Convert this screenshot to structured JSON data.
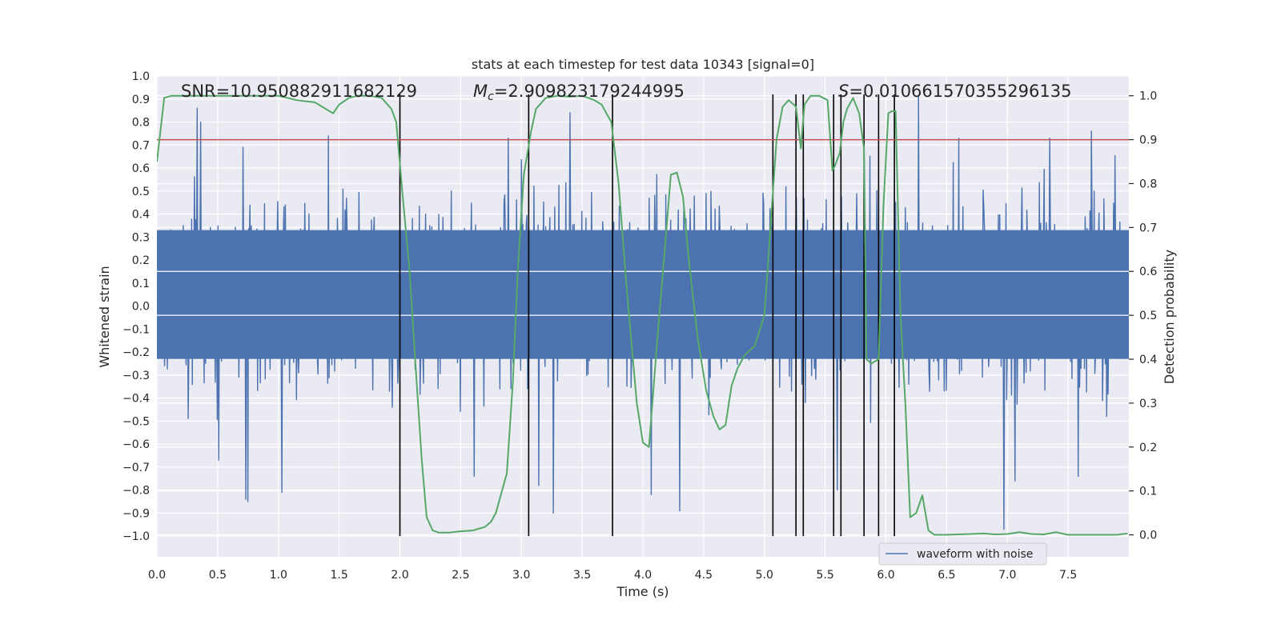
{
  "chart_data": {
    "type": "line",
    "title": "stats at each timestep for test data 10343 [signal=0]",
    "xlabel": "Time (s)",
    "ylabel_left": "Whitened strain",
    "ylabel_right": "Detection probability",
    "xlim": [
      0.0,
      8.0
    ],
    "ylim_left": [
      -1.09,
      1.0
    ],
    "ylim_right": [
      -0.05,
      1.045
    ],
    "x_ticks": [
      0.0,
      0.5,
      1.0,
      1.5,
      2.0,
      2.5,
      3.0,
      3.5,
      4.0,
      4.5,
      5.0,
      5.5,
      6.0,
      6.5,
      7.0,
      7.5
    ],
    "x_tick_labels": [
      "0.0",
      "0.5",
      "1.0",
      "1.5",
      "2.0",
      "2.5",
      "3.0",
      "3.5",
      "4.0",
      "4.5",
      "5.0",
      "5.5",
      "6.0",
      "6.5",
      "7.0",
      "7.5"
    ],
    "y_left_ticks": [
      1.0,
      0.9,
      0.8,
      0.7,
      0.6,
      0.5,
      0.4,
      0.3,
      0.2,
      0.1,
      0.0,
      -0.1,
      -0.2,
      -0.3,
      -0.4,
      -0.5,
      -0.6,
      -0.7,
      -0.8,
      -0.9,
      -1.0
    ],
    "y_left_tick_labels": [
      "1.0",
      "0.9",
      "0.8",
      "0.7",
      "0.6",
      "0.5",
      "0.4",
      "0.3",
      "0.2",
      "0.1",
      "0.0",
      "−0.1",
      "−0.2",
      "−0.3",
      "−0.4",
      "−0.5",
      "−0.6",
      "−0.7",
      "−0.8",
      "−0.9",
      "−1.0"
    ],
    "y_right_ticks": [
      1.0,
      0.9,
      0.8,
      0.7,
      0.6,
      0.5,
      0.4,
      0.3,
      0.2,
      0.1,
      0.0
    ],
    "y_right_tick_labels": [
      "1.0",
      "0.9",
      "0.8",
      "0.7",
      "0.6",
      "0.5",
      "0.4",
      "0.3",
      "0.2",
      "0.1",
      "0.0"
    ],
    "annotations": {
      "snr": "SNR=10.950882911682129",
      "mc_symbol": "M",
      "mc_sub": "c",
      "mc_value": "=2.909823179244995",
      "s_symbol": "S",
      "s_value": "=0.010661570355296135"
    },
    "threshold": 0.9,
    "vertical_lines_x": [
      2.0,
      3.06,
      3.75,
      5.07,
      5.26,
      5.32,
      5.57,
      5.63,
      5.82,
      5.94,
      6.07
    ],
    "vertical_lines_range_left": [
      -1.0,
      0.92
    ],
    "waveform": {
      "name": "waveform with noise",
      "n_samples": 1400,
      "dense_band": [
        -0.23,
        0.33
      ],
      "peaks_pos": [
        [
          0.33,
          0.86
        ],
        [
          0.36,
          0.8
        ],
        [
          0.71,
          0.69
        ],
        [
          1.41,
          0.74
        ],
        [
          2.89,
          0.73
        ],
        [
          3.4,
          0.84
        ],
        [
          6.27,
          0.91
        ],
        [
          6.6,
          0.73
        ],
        [
          7.35,
          0.73
        ],
        [
          7.69,
          0.76
        ]
      ],
      "peaks_neg": [
        [
          0.73,
          -0.84
        ],
        [
          0.75,
          -0.85
        ],
        [
          0.51,
          -0.67
        ],
        [
          1.03,
          -0.81
        ],
        [
          2.61,
          -0.74
        ],
        [
          3.14,
          -0.78
        ],
        [
          3.26,
          -0.9
        ],
        [
          4.07,
          -0.82
        ],
        [
          4.3,
          -0.89
        ],
        [
          5.6,
          -0.8
        ],
        [
          6.97,
          -0.97
        ],
        [
          7.06,
          -0.76
        ],
        [
          7.58,
          -0.74
        ]
      ]
    },
    "probability": {
      "x": [
        0.0,
        0.06,
        0.12,
        0.25,
        0.5,
        0.75,
        1.0,
        1.15,
        1.3,
        1.33,
        1.45,
        1.5,
        1.58,
        1.65,
        1.75,
        1.85,
        1.93,
        1.97,
        2.02,
        2.08,
        2.13,
        2.18,
        2.22,
        2.27,
        2.32,
        2.4,
        2.5,
        2.6,
        2.7,
        2.75,
        2.79,
        2.83,
        2.88,
        2.93,
        2.97,
        3.02,
        3.08,
        3.12,
        3.2,
        3.3,
        3.4,
        3.5,
        3.6,
        3.66,
        3.74,
        3.8,
        3.87,
        3.95,
        4.0,
        4.05,
        4.12,
        4.18,
        4.23,
        4.28,
        4.33,
        4.38,
        4.45,
        4.52,
        4.58,
        4.63,
        4.68,
        4.73,
        4.78,
        4.84,
        4.92,
        5.0,
        5.05,
        5.1,
        5.15,
        5.2,
        5.26,
        5.3,
        5.33,
        5.38,
        5.45,
        5.52,
        5.56,
        5.58,
        5.62,
        5.65,
        5.68,
        5.73,
        5.78,
        5.82,
        5.84,
        5.88,
        5.94,
        5.98,
        6.02,
        6.05,
        6.08,
        6.12,
        6.16,
        6.2,
        6.25,
        6.3,
        6.35,
        6.4,
        6.5,
        6.7,
        6.8,
        6.9,
        7.0,
        7.1,
        7.2,
        7.3,
        7.4,
        7.5,
        7.7,
        7.9,
        7.99
      ],
      "y": [
        0.85,
        0.995,
        1.0,
        1.0,
        1.0,
        1.0,
        1.0,
        0.99,
        0.985,
        0.98,
        0.96,
        0.98,
        0.995,
        1.0,
        1.0,
        0.995,
        0.97,
        0.94,
        0.78,
        0.6,
        0.38,
        0.17,
        0.04,
        0.01,
        0.005,
        0.005,
        0.008,
        0.01,
        0.018,
        0.03,
        0.05,
        0.09,
        0.14,
        0.35,
        0.6,
        0.82,
        0.92,
        0.97,
        0.995,
        1.0,
        0.998,
        1.0,
        0.99,
        0.98,
        0.94,
        0.8,
        0.55,
        0.3,
        0.21,
        0.2,
        0.45,
        0.65,
        0.82,
        0.825,
        0.77,
        0.62,
        0.45,
        0.33,
        0.27,
        0.24,
        0.25,
        0.34,
        0.38,
        0.41,
        0.43,
        0.5,
        0.7,
        0.9,
        0.975,
        0.99,
        0.975,
        0.88,
        0.98,
        1.0,
        1.0,
        0.99,
        0.83,
        0.84,
        0.87,
        0.94,
        0.97,
        0.995,
        0.96,
        0.88,
        0.4,
        0.39,
        0.4,
        0.75,
        0.96,
        0.965,
        0.965,
        0.5,
        0.3,
        0.04,
        0.05,
        0.09,
        0.01,
        0.0,
        0.0,
        0.002,
        0.003,
        0.001,
        0.002,
        0.006,
        0.002,
        0.001,
        0.006,
        0.0,
        0.0,
        0.0,
        0.003
      ]
    },
    "legend": {
      "placement": "lower-right-center"
    },
    "grid": true,
    "colors": {
      "waveform": "#4c72b0",
      "probability": "#55a868",
      "threshold": "#c44e52",
      "vertical_lines": "#000000",
      "background": "#eaeaf2",
      "grid": "#ffffff"
    }
  }
}
